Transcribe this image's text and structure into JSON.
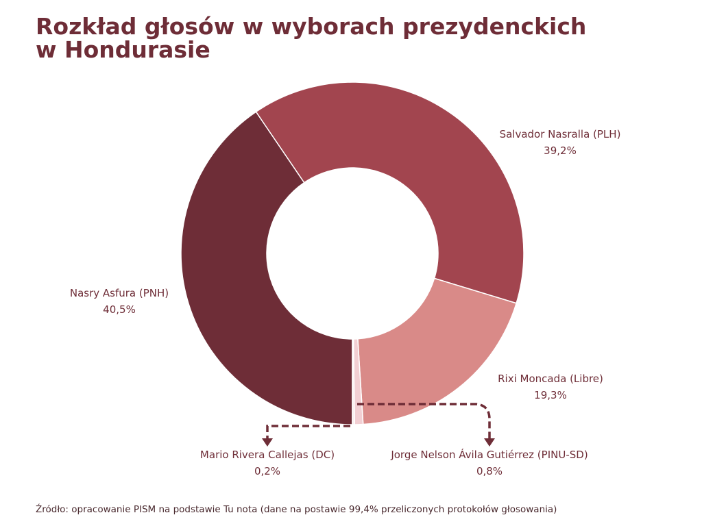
{
  "title_lines": [
    "Rozkład głosów w wyborach prezydenckich",
    "w Hondurasie"
  ],
  "source": "Źródło: opracowanie PISM na podstawie Tu nota (dane na postawie 99,4% przeliczonych protokołów głosowania)",
  "chart_data": {
    "type": "pie",
    "variant": "donut",
    "title": "Rozkład głosów w wyborach prezydenckich w Hondurasie",
    "series": [
      {
        "name": "Nasry Asfura (PNH)",
        "value": 40.5,
        "label": "40,5%",
        "color": "#6e2d37"
      },
      {
        "name": "Salvador Nasralla (PLH)",
        "value": 39.2,
        "label": "39,2%",
        "color": "#a2454f"
      },
      {
        "name": "Rixi Moncada (Libre)",
        "value": 19.3,
        "label": "19,3%",
        "color": "#d98a88"
      },
      {
        "name": "Jorge Nelson Ávila Gutiérrez (PINU-SD)",
        "value": 0.8,
        "label": "0,8%",
        "color": "#f2cfd3"
      },
      {
        "name": "Mario Rivera Callejas (DC)",
        "value": 0.2,
        "label": "0,2%",
        "color": "#fbeeee"
      }
    ]
  }
}
